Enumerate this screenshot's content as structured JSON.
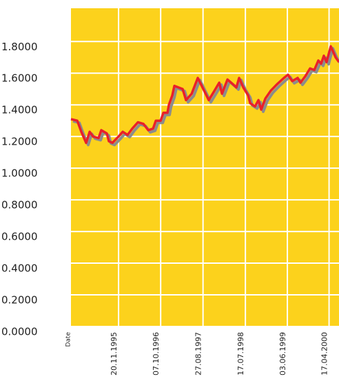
{
  "chart_data": {
    "type": "line",
    "x_label": "Date",
    "background": "#fcd21c",
    "grid_color": "#ffffff",
    "shadow_color": "#8c8c8c",
    "grid": true,
    "xlim": [
      "21.11.1994",
      "02.07.2000"
    ],
    "xticks": [
      "20.11.1995",
      "07.10.1996",
      "27.08.1997",
      "17.07.1998",
      "03.06.1999",
      "17.04.2000"
    ],
    "ylim": [
      0,
      2.01
    ],
    "yticks": [
      {
        "value": 0,
        "label": "0.0000"
      },
      {
        "value": 0.2,
        "label": "0.2000"
      },
      {
        "value": 0.4,
        "label": "0.4000"
      },
      {
        "value": 0.6,
        "label": "0.6000"
      },
      {
        "value": 0.8,
        "label": "0.8000"
      },
      {
        "value": 1,
        "label": "1.0000"
      },
      {
        "value": 1.2,
        "label": "1.2000"
      },
      {
        "value": 1.4,
        "label": "1.4000"
      },
      {
        "value": 1.6,
        "label": "1.6000"
      },
      {
        "value": 1.8,
        "label": "1.8000"
      }
    ],
    "x": [
      "21.11.1994",
      "08.01.1995",
      "08.02.1995",
      "17.03.1995",
      "13.04.1995",
      "09.05.1995",
      "20.06.1995",
      "11.07.1995",
      "22.08.1995",
      "07.09.1995",
      "04.10.1995",
      "20.11.1995",
      "22.12.1995",
      "28.01.1996",
      "04.03.1996",
      "16.04.1996",
      "28.05.1996",
      "04.07.1996",
      "10.08.1996",
      "31.08.1996",
      "07.10.1996",
      "28.10.1996",
      "28.11.1996",
      "09.12.1996",
      "04.01.1997",
      "20.01.1997",
      "24.03.1997",
      "19.04.1997",
      "01.06.1997",
      "18.07.1997",
      "29.08.1997",
      "10.10.1997",
      "16.11.1997",
      "29.12.1997",
      "19.01.1998",
      "02.03.1998",
      "13.04.1998",
      "09.05.1998",
      "30.05.1998",
      "01.07.1998",
      "07.08.1998",
      "23.08.1998",
      "29.09.1998",
      "25.10.1998",
      "15.11.1998",
      "17.12.1998",
      "28.01.1999",
      "16.03.1999",
      "08.05.1999",
      "08.06.1999",
      "10.07.1999",
      "21.08.1999",
      "11.09.1999",
      "18.10.1999",
      "24.11.1999",
      "26.12.1999",
      "26.01.2000",
      "16.02.2000",
      "08.03.2000",
      "29.03.2000",
      "30.04.2000",
      "06.06.2000",
      "02.07.2000"
    ],
    "series": [
      {
        "color": "#e8202a",
        "values": [
          1.31,
          1.3,
          1.23,
          1.16,
          1.23,
          1.2,
          1.19,
          1.24,
          1.22,
          1.17,
          1.16,
          1.2,
          1.23,
          1.21,
          1.25,
          1.29,
          1.28,
          1.24,
          1.25,
          1.3,
          1.3,
          1.35,
          1.35,
          1.4,
          1.46,
          1.52,
          1.5,
          1.43,
          1.47,
          1.57,
          1.5,
          1.43,
          1.48,
          1.54,
          1.47,
          1.56,
          1.53,
          1.51,
          1.57,
          1.51,
          1.46,
          1.41,
          1.39,
          1.43,
          1.37,
          1.44,
          1.49,
          1.53,
          1.57,
          1.59,
          1.55,
          1.57,
          1.54,
          1.58,
          1.63,
          1.62,
          1.68,
          1.66,
          1.71,
          1.67,
          1.77,
          1.7,
          1.67
        ]
      }
    ]
  }
}
